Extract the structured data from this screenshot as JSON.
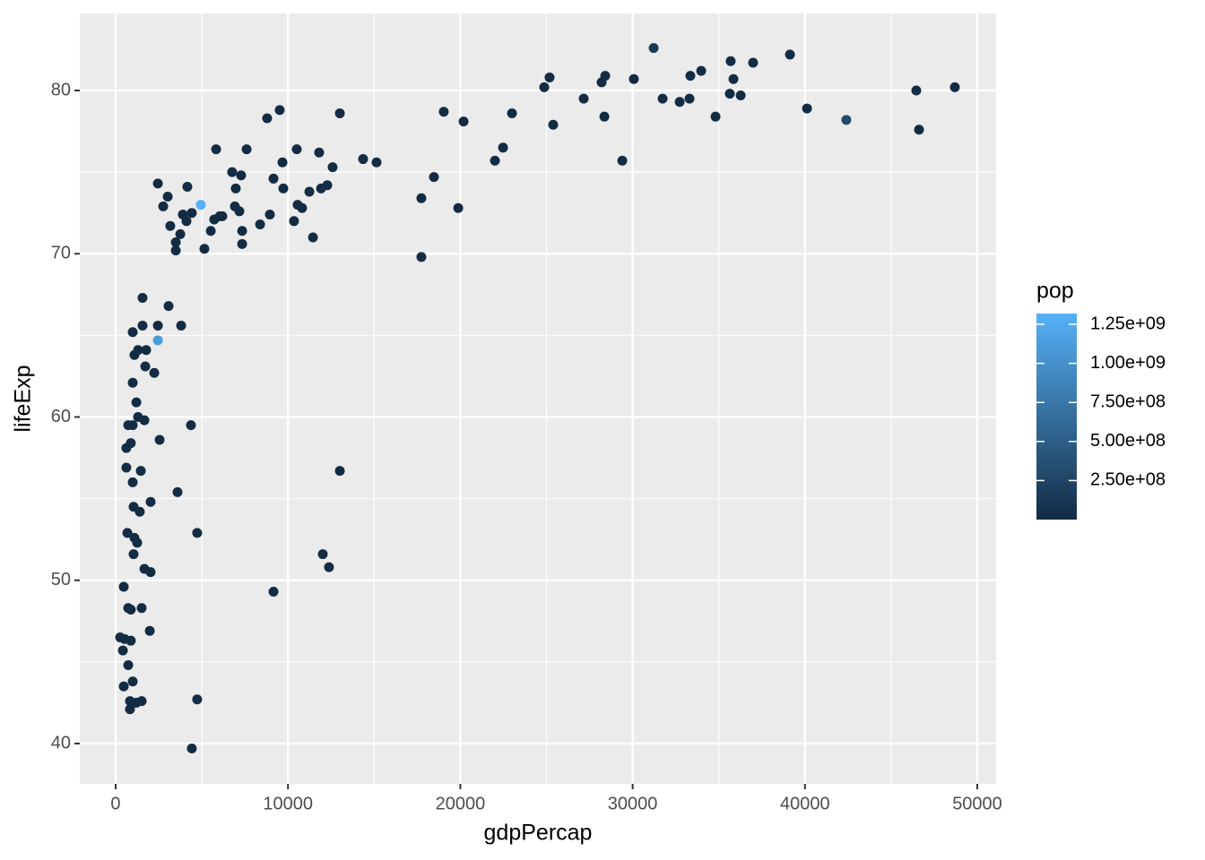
{
  "chart_data": {
    "type": "scatter",
    "x_label": "gdpPercap",
    "y_label": "lifeExp",
    "xlim": [
      -2081,
      51092
    ],
    "ylim": [
      37.53,
      84.72
    ],
    "xticks": [
      0,
      10000,
      20000,
      30000,
      40000,
      50000
    ],
    "yticks": [
      40,
      50,
      60,
      70,
      80
    ],
    "x_minor_ticks": [
      5000,
      15000,
      25000,
      35000,
      45000
    ],
    "y_minor_ticks": [
      45,
      55,
      65,
      75
    ],
    "grid": true,
    "panel_color": "#ebebeb",
    "grid_color": "#ffffff",
    "x": [
      31220,
      39130,
      25180,
      24870,
      28410,
      28200,
      30070,
      35690,
      36990,
      33980,
      33350,
      35850,
      35640,
      36270,
      31740,
      32730,
      33300,
      27160,
      25390,
      28360,
      34810,
      42400,
      40120,
      46460,
      48700,
      46620,
      29400,
      19040,
      20190,
      23000,
      22480,
      22010,
      18470,
      17740,
      19880,
      14360,
      15140,
      17740,
      13010,
      13010,
      12020,
      12380,
      9160,
      9520,
      8790,
      5830,
      7600,
      10510,
      11810,
      6760,
      7280,
      9680,
      12590,
      9730,
      6970,
      9160,
      2450,
      4160,
      2760,
      4940,
      4420,
      3900,
      3020,
      5720,
      6040,
      6190,
      6920,
      7180,
      8950,
      10560,
      10820,
      10350,
      11240,
      11920,
      12280,
      8380,
      7340,
      7340,
      5520,
      4110,
      3750,
      3490,
      3490,
      5150,
      11450,
      3170,
      1560,
      3070,
      2450,
      1560,
      3800,
      990,
      2450,
      1090,
      1770,
      1300,
      1720,
      2240,
      990,
      1200,
      1300,
      730,
      990,
      1670,
      4370,
      880,
      2550,
      620,
      990,
      1460,
      620,
      1400,
      1040,
      2030,
      3590,
      680,
      1090,
      1250,
      1040,
      1670,
      2030,
      470,
      730,
      1510,
      880,
      1980,
      260,
      520,
      880,
      420,
      730,
      990,
      470,
      830,
      830,
      1200,
      1510,
      4730,
      4730,
      4420
    ],
    "values": [
      82.6,
      82.2,
      80.8,
      80.2,
      80.9,
      80.5,
      80.7,
      81.8,
      81.7,
      81.2,
      80.9,
      80.7,
      79.8,
      79.7,
      79.5,
      79.3,
      79.5,
      79.5,
      77.9,
      78.4,
      78.4,
      78.2,
      78.9,
      80.0,
      80.2,
      77.6,
      75.7,
      78.7,
      78.1,
      78.6,
      76.5,
      75.7,
      74.7,
      73.4,
      72.8,
      75.8,
      75.6,
      69.8,
      78.6,
      56.7,
      51.6,
      50.8,
      49.3,
      78.8,
      78.3,
      76.4,
      76.4,
      76.4,
      76.2,
      75.0,
      74.8,
      75.6,
      75.3,
      74.0,
      74.0,
      74.6,
      74.3,
      74.1,
      72.9,
      73.0,
      72.5,
      72.4,
      73.5,
      72.1,
      72.3,
      72.3,
      72.9,
      72.6,
      72.4,
      73.0,
      72.8,
      72.0,
      73.8,
      74.0,
      74.2,
      71.8,
      71.4,
      70.6,
      71.4,
      72.0,
      71.2,
      70.7,
      70.2,
      70.3,
      71.0,
      71.7,
      67.3,
      66.8,
      65.6,
      65.6,
      65.6,
      65.2,
      64.7,
      63.8,
      64.1,
      64.1,
      63.1,
      62.7,
      62.1,
      60.9,
      60.0,
      59.5,
      59.5,
      59.8,
      59.5,
      58.4,
      58.6,
      58.1,
      56.0,
      56.7,
      56.9,
      54.2,
      54.5,
      54.8,
      55.4,
      52.9,
      52.6,
      52.3,
      51.6,
      50.7,
      50.5,
      49.6,
      48.3,
      48.3,
      48.2,
      46.9,
      46.5,
      46.4,
      46.3,
      45.7,
      44.8,
      43.8,
      43.5,
      42.6,
      42.1,
      42.5,
      42.6,
      52.9,
      42.7,
      39.7
    ],
    "color_values": [
      127000000,
      20400000,
      10000000,
      10000000,
      10000000,
      10000000,
      10000000,
      10000000,
      10000000,
      10000000,
      10000000,
      10000000,
      10000000,
      10000000,
      10000000,
      10000000,
      10000000,
      10000000,
      10000000,
      10000000,
      10000000,
      301139947,
      10000000,
      10000000,
      10000000,
      10000000,
      10000000,
      10000000,
      10000000,
      10000000,
      10000000,
      10000000,
      10000000,
      10000000,
      10000000,
      10000000,
      10000000,
      10000000,
      10000000,
      10000000,
      10000000,
      10000000,
      10000000,
      10000000,
      10000000,
      10000000,
      10000000,
      10000000,
      10000000,
      10000000,
      10000000,
      10000000,
      10000000,
      10000000,
      10000000,
      10000000,
      10000000,
      10000000,
      10000000,
      1318683096,
      10000000,
      10000000,
      10000000,
      10000000,
      10000000,
      10000000,
      10000000,
      10000000,
      10000000,
      10000000,
      10000000,
      10000000,
      10000000,
      10000000,
      10000000,
      10000000,
      10000000,
      10000000,
      10000000,
      10000000,
      10000000,
      10000000,
      10000000,
      10000000,
      10000000,
      10000000,
      10000000,
      10000000,
      10000000,
      10000000,
      10000000,
      10000000,
      1110396331,
      10000000,
      10000000,
      10000000,
      10000000,
      10000000,
      10000000,
      10000000,
      10000000,
      10000000,
      10000000,
      10000000,
      10000000,
      10000000,
      10000000,
      10000000,
      10000000,
      10000000,
      10000000,
      10000000,
      10000000,
      10000000,
      10000000,
      10000000,
      10000000,
      10000000,
      10000000,
      10000000,
      10000000,
      10000000,
      10000000,
      10000000,
      10000000,
      10000000,
      10000000,
      10000000,
      10000000,
      10000000,
      10000000,
      10000000,
      10000000,
      10000000,
      10000000,
      10000000,
      10000000,
      10000000,
      10000000,
      10000000
    ],
    "color_legend": {
      "title": "pop",
      "lim": [
        199579,
        1318683096
      ],
      "low_color": "#132b43",
      "high_color": "#56b1f7",
      "ticks": [
        {
          "value": 250000000,
          "label": "2.50e+08"
        },
        {
          "value": 500000000,
          "label": "5.00e+08"
        },
        {
          "value": 750000000,
          "label": "7.50e+08"
        },
        {
          "value": 1000000000,
          "label": "1.00e+09"
        },
        {
          "value": 1250000000,
          "label": "1.25e+09"
        }
      ]
    }
  }
}
